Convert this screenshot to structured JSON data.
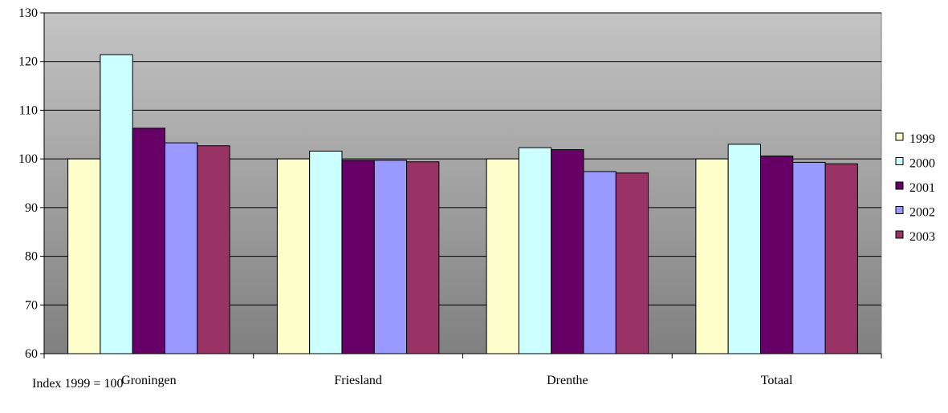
{
  "chart_data": {
    "type": "bar",
    "categories": [
      "Groningen",
      "Friesland",
      "Drenthe",
      "Totaal"
    ],
    "series": [
      {
        "name": "1999",
        "color": "#FFFFCC",
        "values": [
          100,
          100,
          100,
          100
        ]
      },
      {
        "name": "2000",
        "color": "#CCFFFF",
        "values": [
          121.4,
          101.6,
          102.3,
          103
        ]
      },
      {
        "name": "2001",
        "color": "#660066",
        "values": [
          106.3,
          99.7,
          101.9,
          100.6
        ]
      },
      {
        "name": "2002",
        "color": "#9999FF",
        "values": [
          103.3,
          99.7,
          97.4,
          99.3
        ]
      },
      {
        "name": "2003",
        "color": "#993366",
        "values": [
          102.7,
          99.4,
          97.1,
          99
        ]
      }
    ],
    "ylim": [
      60,
      130
    ],
    "yticks": [
      60,
      70,
      80,
      90,
      100,
      110,
      120,
      130
    ],
    "grid": true,
    "legend": "right",
    "background": "gradient-gray",
    "note": "Index 1999 = 100"
  }
}
